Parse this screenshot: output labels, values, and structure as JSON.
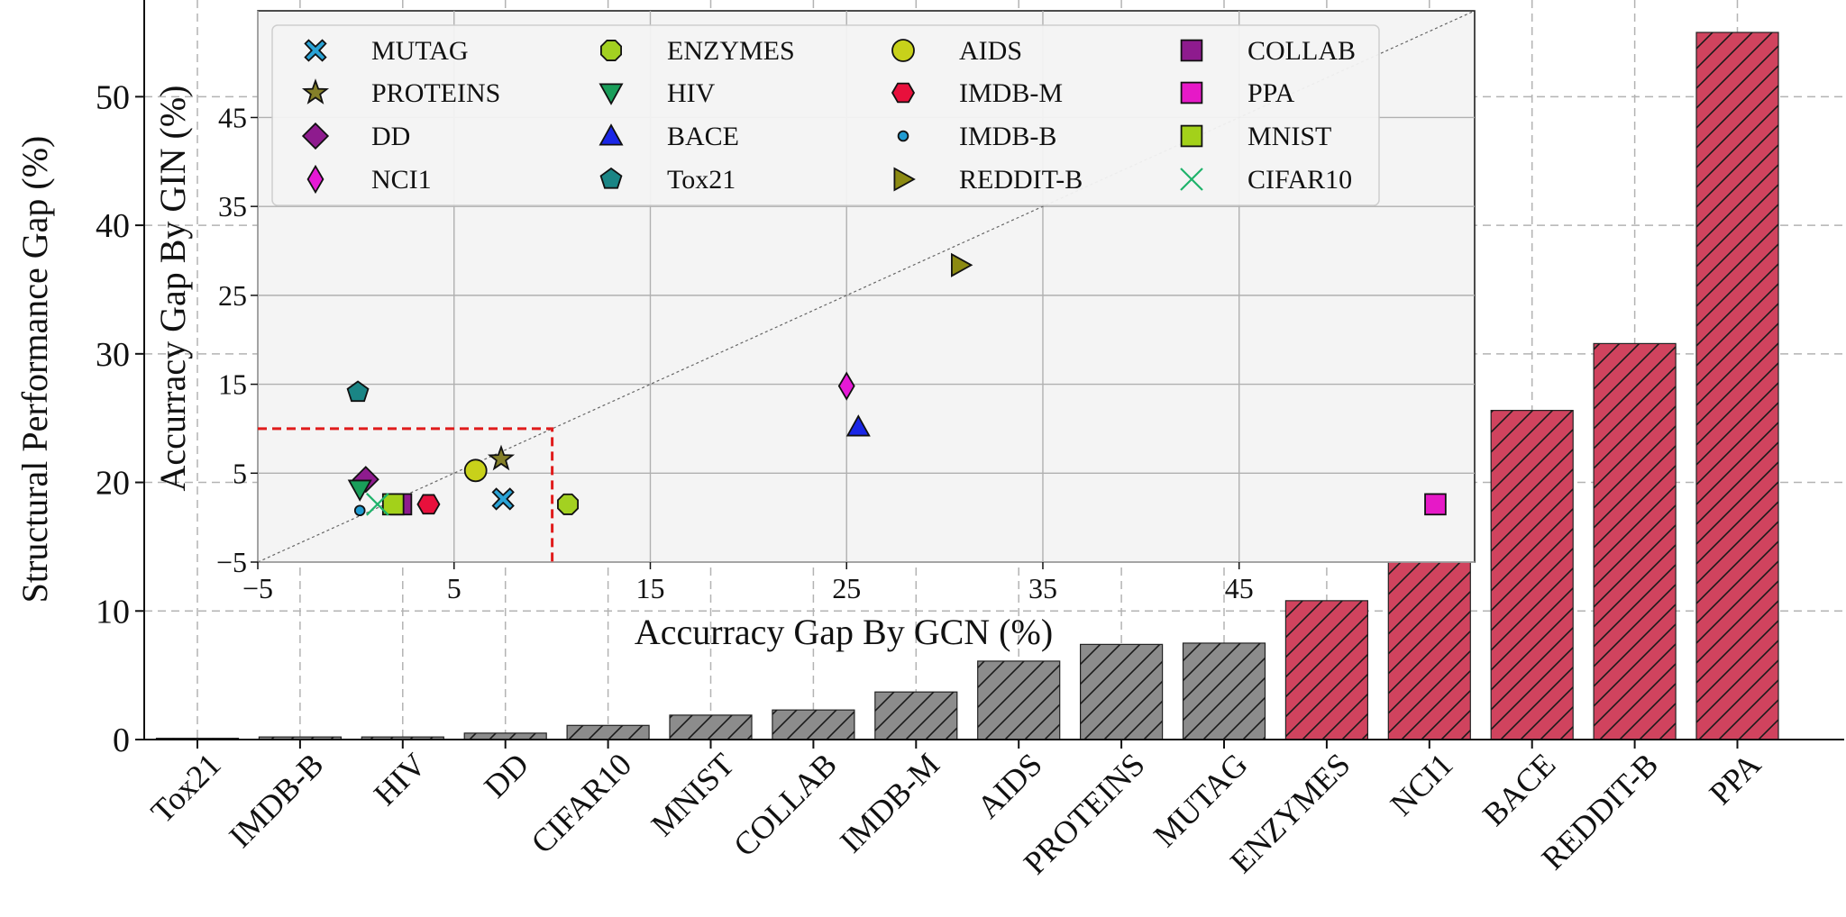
{
  "chart_data": [
    {
      "type": "bar",
      "ylabel": "Structural Performance Gap (%)",
      "ylim": [
        0,
        55
      ],
      "yticks": [
        0,
        10,
        20,
        30,
        40,
        50
      ],
      "grid": true,
      "categories": [
        "Tox21",
        "IMDB-B",
        "HIV",
        "DD",
        "CIFAR10",
        "MNIST",
        "COLLAB",
        "IMDB-M",
        "AIDS",
        "PROTEINS",
        "MUTAG",
        "ENZYMES",
        "NCI1",
        "BACE",
        "REDDIT-B",
        "PPA"
      ],
      "values": [
        0.1,
        0.2,
        0.2,
        0.5,
        1.1,
        1.9,
        2.3,
        3.7,
        6.1,
        7.4,
        7.5,
        10.8,
        25.0,
        25.6,
        30.8,
        55.0
      ],
      "colors": [
        "#8c8c8c",
        "#8c8c8c",
        "#8c8c8c",
        "#8c8c8c",
        "#8c8c8c",
        "#8c8c8c",
        "#8c8c8c",
        "#8c8c8c",
        "#8c8c8c",
        "#8c8c8c",
        "#8c8c8c",
        "#d0435e",
        "#d0435e",
        "#d0435e",
        "#d0435e",
        "#d0435e"
      ],
      "hatch": "diagonal"
    },
    {
      "type": "scatter",
      "xlabel": "Accurracy Gap By GCN (%)",
      "ylabel": "Accurracy Gap By GIN (%)",
      "xlim": [
        -5,
        57
      ],
      "ylim": [
        -5,
        57
      ],
      "xticks": [
        -5,
        5,
        15,
        25,
        35,
        45
      ],
      "yticks": [
        -5,
        5,
        15,
        25,
        35,
        45
      ],
      "grid": true,
      "diagonal_reference": true,
      "highlight_box": [
        -5,
        10,
        -5,
        10
      ],
      "legend": {
        "placement": "top",
        "columns": 4
      },
      "series": [
        {
          "name": "MUTAG",
          "marker": "X",
          "color": "#29a3d6",
          "points": [
            [
              7.5,
              2.1
            ]
          ]
        },
        {
          "name": "PROTEINS",
          "marker": "star",
          "color": "#858029",
          "points": [
            [
              7.4,
              6.6
            ]
          ]
        },
        {
          "name": "DD",
          "marker": "diamond",
          "color": "#8e1b8e",
          "points": [
            [
              0.5,
              4.3
            ]
          ]
        },
        {
          "name": "NCI1",
          "marker": "thin_diamond",
          "color": "#e619d6",
          "points": [
            [
              25.0,
              14.8
            ]
          ]
        },
        {
          "name": "ENZYMES",
          "marker": "octagon",
          "color": "#a3d121",
          "points": [
            [
              10.8,
              1.5
            ]
          ]
        },
        {
          "name": "HIV",
          "marker": "triangle_down",
          "color": "#1a9e5a",
          "points": [
            [
              0.2,
              3.2
            ]
          ]
        },
        {
          "name": "BACE",
          "marker": "triangle_up",
          "color": "#1a26e6",
          "points": [
            [
              25.6,
              10.2
            ]
          ]
        },
        {
          "name": "Tox21",
          "marker": "pentagon",
          "color": "#1a8585",
          "points": [
            [
              0.1,
              14.1
            ]
          ]
        },
        {
          "name": "AIDS",
          "marker": "circle",
          "color": "#c8d11a",
          "points": [
            [
              6.1,
              5.3
            ]
          ]
        },
        {
          "name": "IMDB-M",
          "marker": "hexagon",
          "color": "#e8103c",
          "points": [
            [
              3.7,
              1.5
            ]
          ]
        },
        {
          "name": "IMDB-B",
          "marker": "point",
          "color": "#1f9bd1",
          "points": [
            [
              0.2,
              0.8
            ]
          ]
        },
        {
          "name": "REDDIT-B",
          "marker": "triangle_right",
          "color": "#8c8a12",
          "points": [
            [
              30.8,
              28.4
            ]
          ]
        },
        {
          "name": "COLLAB",
          "marker": "square",
          "color": "#8e1b8e",
          "points": [
            [
              2.3,
              1.5
            ]
          ]
        },
        {
          "name": "PPA",
          "marker": "square",
          "color": "#e619c7",
          "points": [
            [
              55.0,
              1.5
            ]
          ]
        },
        {
          "name": "MNIST",
          "marker": "square",
          "color": "#a3d11a",
          "points": [
            [
              1.9,
              1.5
            ]
          ]
        },
        {
          "name": "CIFAR10",
          "marker": "x",
          "color": "#1fb36b",
          "points": [
            [
              1.1,
              1.5
            ]
          ]
        }
      ]
    }
  ]
}
